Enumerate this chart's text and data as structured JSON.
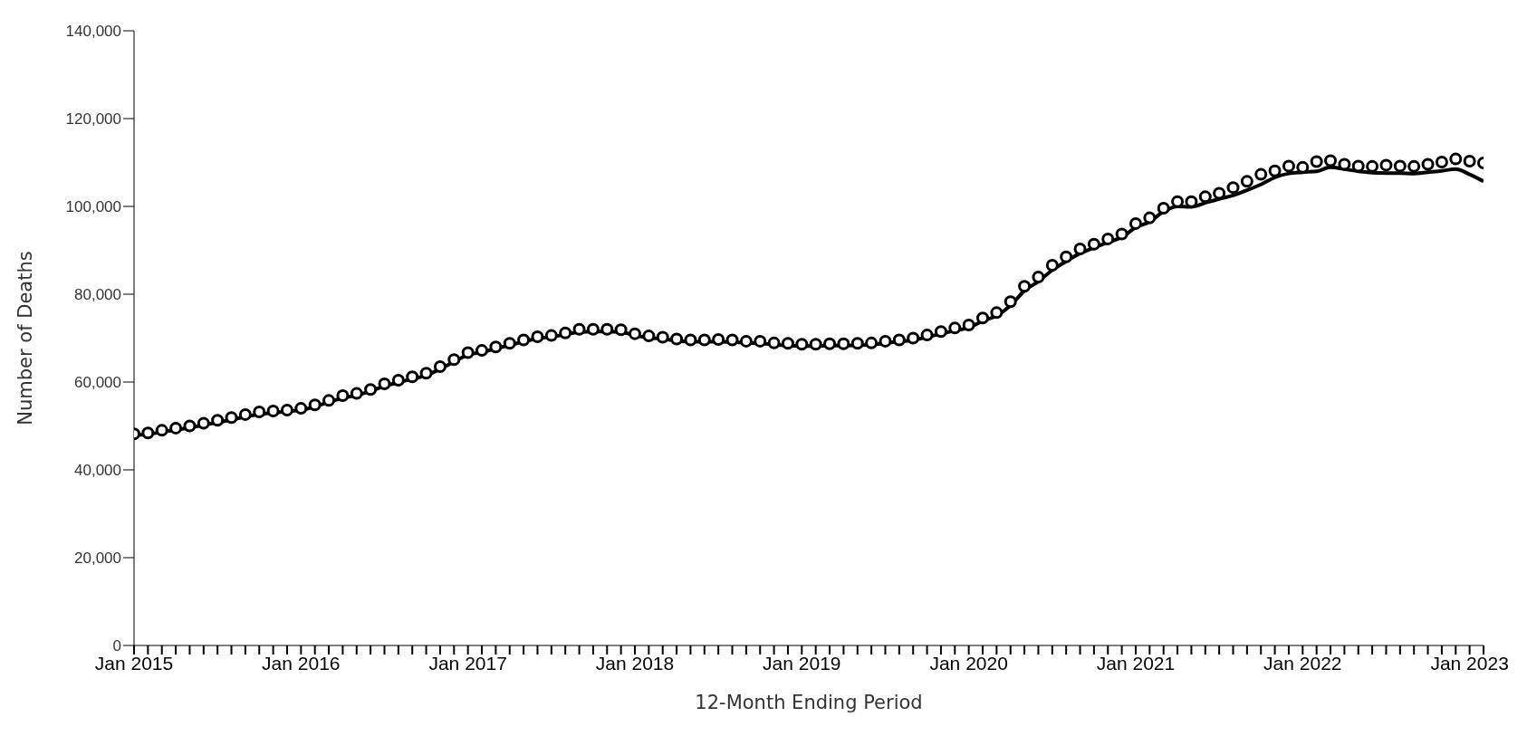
{
  "chart_data": {
    "type": "line",
    "xlabel": "12-Month Ending Period",
    "ylabel": "Number of Deaths",
    "x": [
      "2015-01",
      "2015-02",
      "2015-03",
      "2015-04",
      "2015-05",
      "2015-06",
      "2015-07",
      "2015-08",
      "2015-09",
      "2015-10",
      "2015-11",
      "2015-12",
      "2016-01",
      "2016-02",
      "2016-03",
      "2016-04",
      "2016-05",
      "2016-06",
      "2016-07",
      "2016-08",
      "2016-09",
      "2016-10",
      "2016-11",
      "2016-12",
      "2017-01",
      "2017-02",
      "2017-03",
      "2017-04",
      "2017-05",
      "2017-06",
      "2017-07",
      "2017-08",
      "2017-09",
      "2017-10",
      "2017-11",
      "2017-12",
      "2018-01",
      "2018-02",
      "2018-03",
      "2018-04",
      "2018-05",
      "2018-06",
      "2018-07",
      "2018-08",
      "2018-09",
      "2018-10",
      "2018-11",
      "2018-12",
      "2019-01",
      "2019-02",
      "2019-03",
      "2019-04",
      "2019-05",
      "2019-06",
      "2019-07",
      "2019-08",
      "2019-09",
      "2019-10",
      "2019-11",
      "2019-12",
      "2020-01",
      "2020-02",
      "2020-03",
      "2020-04",
      "2020-05",
      "2020-06",
      "2020-07",
      "2020-08",
      "2020-09",
      "2020-10",
      "2020-11",
      "2020-12",
      "2021-01",
      "2021-02",
      "2021-03",
      "2021-04",
      "2021-05",
      "2021-06",
      "2021-07",
      "2021-08",
      "2021-09",
      "2021-10",
      "2021-11",
      "2021-12",
      "2022-01",
      "2022-02",
      "2022-03",
      "2022-04",
      "2022-05",
      "2022-06",
      "2022-07",
      "2022-08",
      "2022-09",
      "2022-10",
      "2022-11",
      "2022-12",
      "2023-01",
      "2023-02"
    ],
    "series": [
      {
        "type": "scatter",
        "marker": "circle",
        "color": "#000000",
        "values": [
          48200,
          48400,
          49000,
          49500,
          50000,
          50600,
          51300,
          51900,
          52600,
          53200,
          53400,
          53600,
          54000,
          54800,
          55800,
          56900,
          57400,
          58300,
          59600,
          60400,
          61200,
          62000,
          63500,
          65100,
          66700,
          67200,
          68000,
          68800,
          69600,
          70300,
          70600,
          71200,
          72000,
          72000,
          72000,
          71900,
          71000,
          70500,
          70200,
          69800,
          69600,
          69600,
          69700,
          69600,
          69300,
          69300,
          68900,
          68800,
          68600,
          68600,
          68700,
          68700,
          68800,
          68900,
          69300,
          69600,
          70000,
          70700,
          71500,
          72300,
          73000,
          74600,
          75800,
          78300,
          81800,
          83900,
          86600,
          88500,
          90300,
          91400,
          92600,
          93700,
          96100,
          97400,
          99600,
          101100,
          101100,
          102200,
          103000,
          104300,
          105700,
          107300,
          108100,
          109200,
          108900,
          110200,
          110400,
          109600,
          109200,
          109100,
          109400,
          109200,
          109100,
          109600,
          110100,
          110800,
          110300,
          109900
        ]
      },
      {
        "color": "#000000",
        "values": [
          47900,
          48100,
          48600,
          49100,
          49600,
          50200,
          50800,
          51400,
          52100,
          52700,
          53000,
          53300,
          53600,
          54400,
          55400,
          56400,
          57000,
          57900,
          59100,
          59900,
          60700,
          61500,
          63000,
          64600,
          66200,
          66800,
          67600,
          68400,
          69200,
          69900,
          70300,
          70800,
          71400,
          71500,
          71500,
          71400,
          70600,
          70100,
          69800,
          69400,
          69200,
          69200,
          69200,
          69100,
          68900,
          68800,
          68500,
          68300,
          68200,
          68200,
          68300,
          68300,
          68400,
          68500,
          68900,
          69200,
          69600,
          70200,
          71000,
          71700,
          72400,
          73900,
          75100,
          77400,
          80800,
          82900,
          85500,
          87500,
          89300,
          90600,
          91800,
          93000,
          95200,
          96500,
          98800,
          100000,
          99900,
          100800,
          101700,
          102500,
          103700,
          105000,
          106600,
          107500,
          107800,
          108000,
          108900,
          108500,
          108000,
          107700,
          107600,
          107600,
          107500,
          107800,
          108100,
          108500,
          107300,
          105700
        ]
      }
    ],
    "ylim": [
      0,
      140000
    ],
    "yticks": [
      0,
      {
        "value": 20000,
        "label": "20,000"
      },
      {
        "value": 40000,
        "label": "40,000"
      },
      {
        "value": 60000,
        "label": "60,000"
      },
      {
        "value": 80000,
        "label": "80,000"
      },
      {
        "value": 100000,
        "label": "100,000"
      },
      {
        "value": 120000,
        "label": "120,000"
      },
      {
        "value": 140000,
        "label": "140,000"
      }
    ],
    "xlim": [
      "2015-01",
      "2023-02"
    ],
    "xticks": [
      {
        "value": "2015-01",
        "label": "Jan 2015"
      },
      {
        "value": "2016-01",
        "label": "Jan 2016"
      },
      {
        "value": "2017-01",
        "label": "Jan 2017"
      },
      {
        "value": "2018-01",
        "label": "Jan 2018"
      },
      {
        "value": "2019-01",
        "label": "Jan 2019"
      },
      {
        "value": "2020-01",
        "label": "Jan 2020"
      },
      {
        "value": "2021-01",
        "label": "Jan 2021"
      },
      {
        "value": "2022-01",
        "label": "Jan 2022"
      },
      {
        "value": "2023-01",
        "label": "Jan 2023"
      },
      {
        "value": "2015-02",
        "label": null
      },
      {
        "value": "2015-03",
        "label": null
      },
      {
        "value": "2015-04",
        "label": null
      },
      {
        "value": "2015-05",
        "label": null
      },
      {
        "value": "2015-06",
        "label": null
      },
      {
        "value": "2015-07",
        "label": null
      },
      {
        "value": "2015-08",
        "label": null
      },
      {
        "value": "2015-09",
        "label": null
      },
      {
        "value": "2015-10",
        "label": null
      },
      {
        "value": "2015-11",
        "label": null
      },
      {
        "value": "2015-12",
        "label": null
      },
      {
        "value": "2016-02",
        "label": null
      },
      {
        "value": "2016-03",
        "label": null
      },
      {
        "value": "2016-04",
        "label": null
      },
      {
        "value": "2016-05",
        "label": null
      },
      {
        "value": "2016-06",
        "label": null
      },
      {
        "value": "2016-07",
        "label": null
      },
      {
        "value": "2016-08",
        "label": null
      },
      {
        "value": "2016-09",
        "label": null
      },
      {
        "value": "2016-10",
        "label": null
      },
      {
        "value": "2016-11",
        "label": null
      },
      {
        "value": "2016-12",
        "label": null
      },
      {
        "value": "2017-02",
        "label": null
      },
      {
        "value": "2017-03",
        "label": null
      },
      {
        "value": "2017-04",
        "label": null
      },
      {
        "value": "2017-05",
        "label": null
      },
      {
        "value": "2017-06",
        "label": null
      },
      {
        "value": "2017-07",
        "label": null
      },
      {
        "value": "2017-08",
        "label": null
      },
      {
        "value": "2017-09",
        "label": null
      },
      {
        "value": "2017-10",
        "label": null
      },
      {
        "value": "2017-11",
        "label": null
      },
      {
        "value": "2017-12",
        "label": null
      },
      {
        "value": "2018-02",
        "label": null
      },
      {
        "value": "2018-03",
        "label": null
      },
      {
        "value": "2018-04",
        "label": null
      },
      {
        "value": "2018-05",
        "label": null
      },
      {
        "value": "2018-06",
        "label": null
      },
      {
        "value": "2018-07",
        "label": null
      },
      {
        "value": "2018-08",
        "label": null
      },
      {
        "value": "2018-09",
        "label": null
      },
      {
        "value": "2018-10",
        "label": null
      },
      {
        "value": "2018-11",
        "label": null
      },
      {
        "value": "2018-12",
        "label": null
      },
      {
        "value": "2019-02",
        "label": null
      },
      {
        "value": "2019-03",
        "label": null
      },
      {
        "value": "2019-04",
        "label": null
      },
      {
        "value": "2019-05",
        "label": null
      },
      {
        "value": "2019-06",
        "label": null
      },
      {
        "value": "2019-07",
        "label": null
      },
      {
        "value": "2019-08",
        "label": null
      },
      {
        "value": "2019-09",
        "label": null
      },
      {
        "value": "2019-10",
        "label": null
      },
      {
        "value": "2019-11",
        "label": null
      },
      {
        "value": "2019-12",
        "label": null
      },
      {
        "value": "2020-02",
        "label": null
      },
      {
        "value": "2020-03",
        "label": null
      },
      {
        "value": "2020-04",
        "label": null
      },
      {
        "value": "2020-05",
        "label": null
      },
      {
        "value": "2020-06",
        "label": null
      },
      {
        "value": "2020-07",
        "label": null
      },
      {
        "value": "2020-08",
        "label": null
      },
      {
        "value": "2020-09",
        "label": null
      },
      {
        "value": "2020-10",
        "label": null
      },
      {
        "value": "2020-11",
        "label": null
      },
      {
        "value": "2020-12",
        "label": null
      },
      {
        "value": "2021-02",
        "label": null
      },
      {
        "value": "2021-03",
        "label": null
      },
      {
        "value": "2021-04",
        "label": null
      },
      {
        "value": "2021-05",
        "label": null
      },
      {
        "value": "2021-06",
        "label": null
      },
      {
        "value": "2021-07",
        "label": null
      },
      {
        "value": "2021-08",
        "label": null
      },
      {
        "value": "2021-09",
        "label": null
      },
      {
        "value": "2021-10",
        "label": null
      },
      {
        "value": "2021-11",
        "label": null
      },
      {
        "value": "2021-12",
        "label": null
      },
      {
        "value": "2022-02",
        "label": null
      },
      {
        "value": "2022-03",
        "label": null
      },
      {
        "value": "2022-04",
        "label": null
      },
      {
        "value": "2022-05",
        "label": null
      },
      {
        "value": "2022-06",
        "label": null
      },
      {
        "value": "2022-07",
        "label": null
      },
      {
        "value": "2022-08",
        "label": null
      },
      {
        "value": "2022-09",
        "label": null
      },
      {
        "value": "2022-10",
        "label": null
      },
      {
        "value": "2022-11",
        "label": null
      },
      {
        "value": "2022-12",
        "label": null
      },
      {
        "value": "2023-02",
        "label": null
      }
    ],
    "grid": false
  }
}
